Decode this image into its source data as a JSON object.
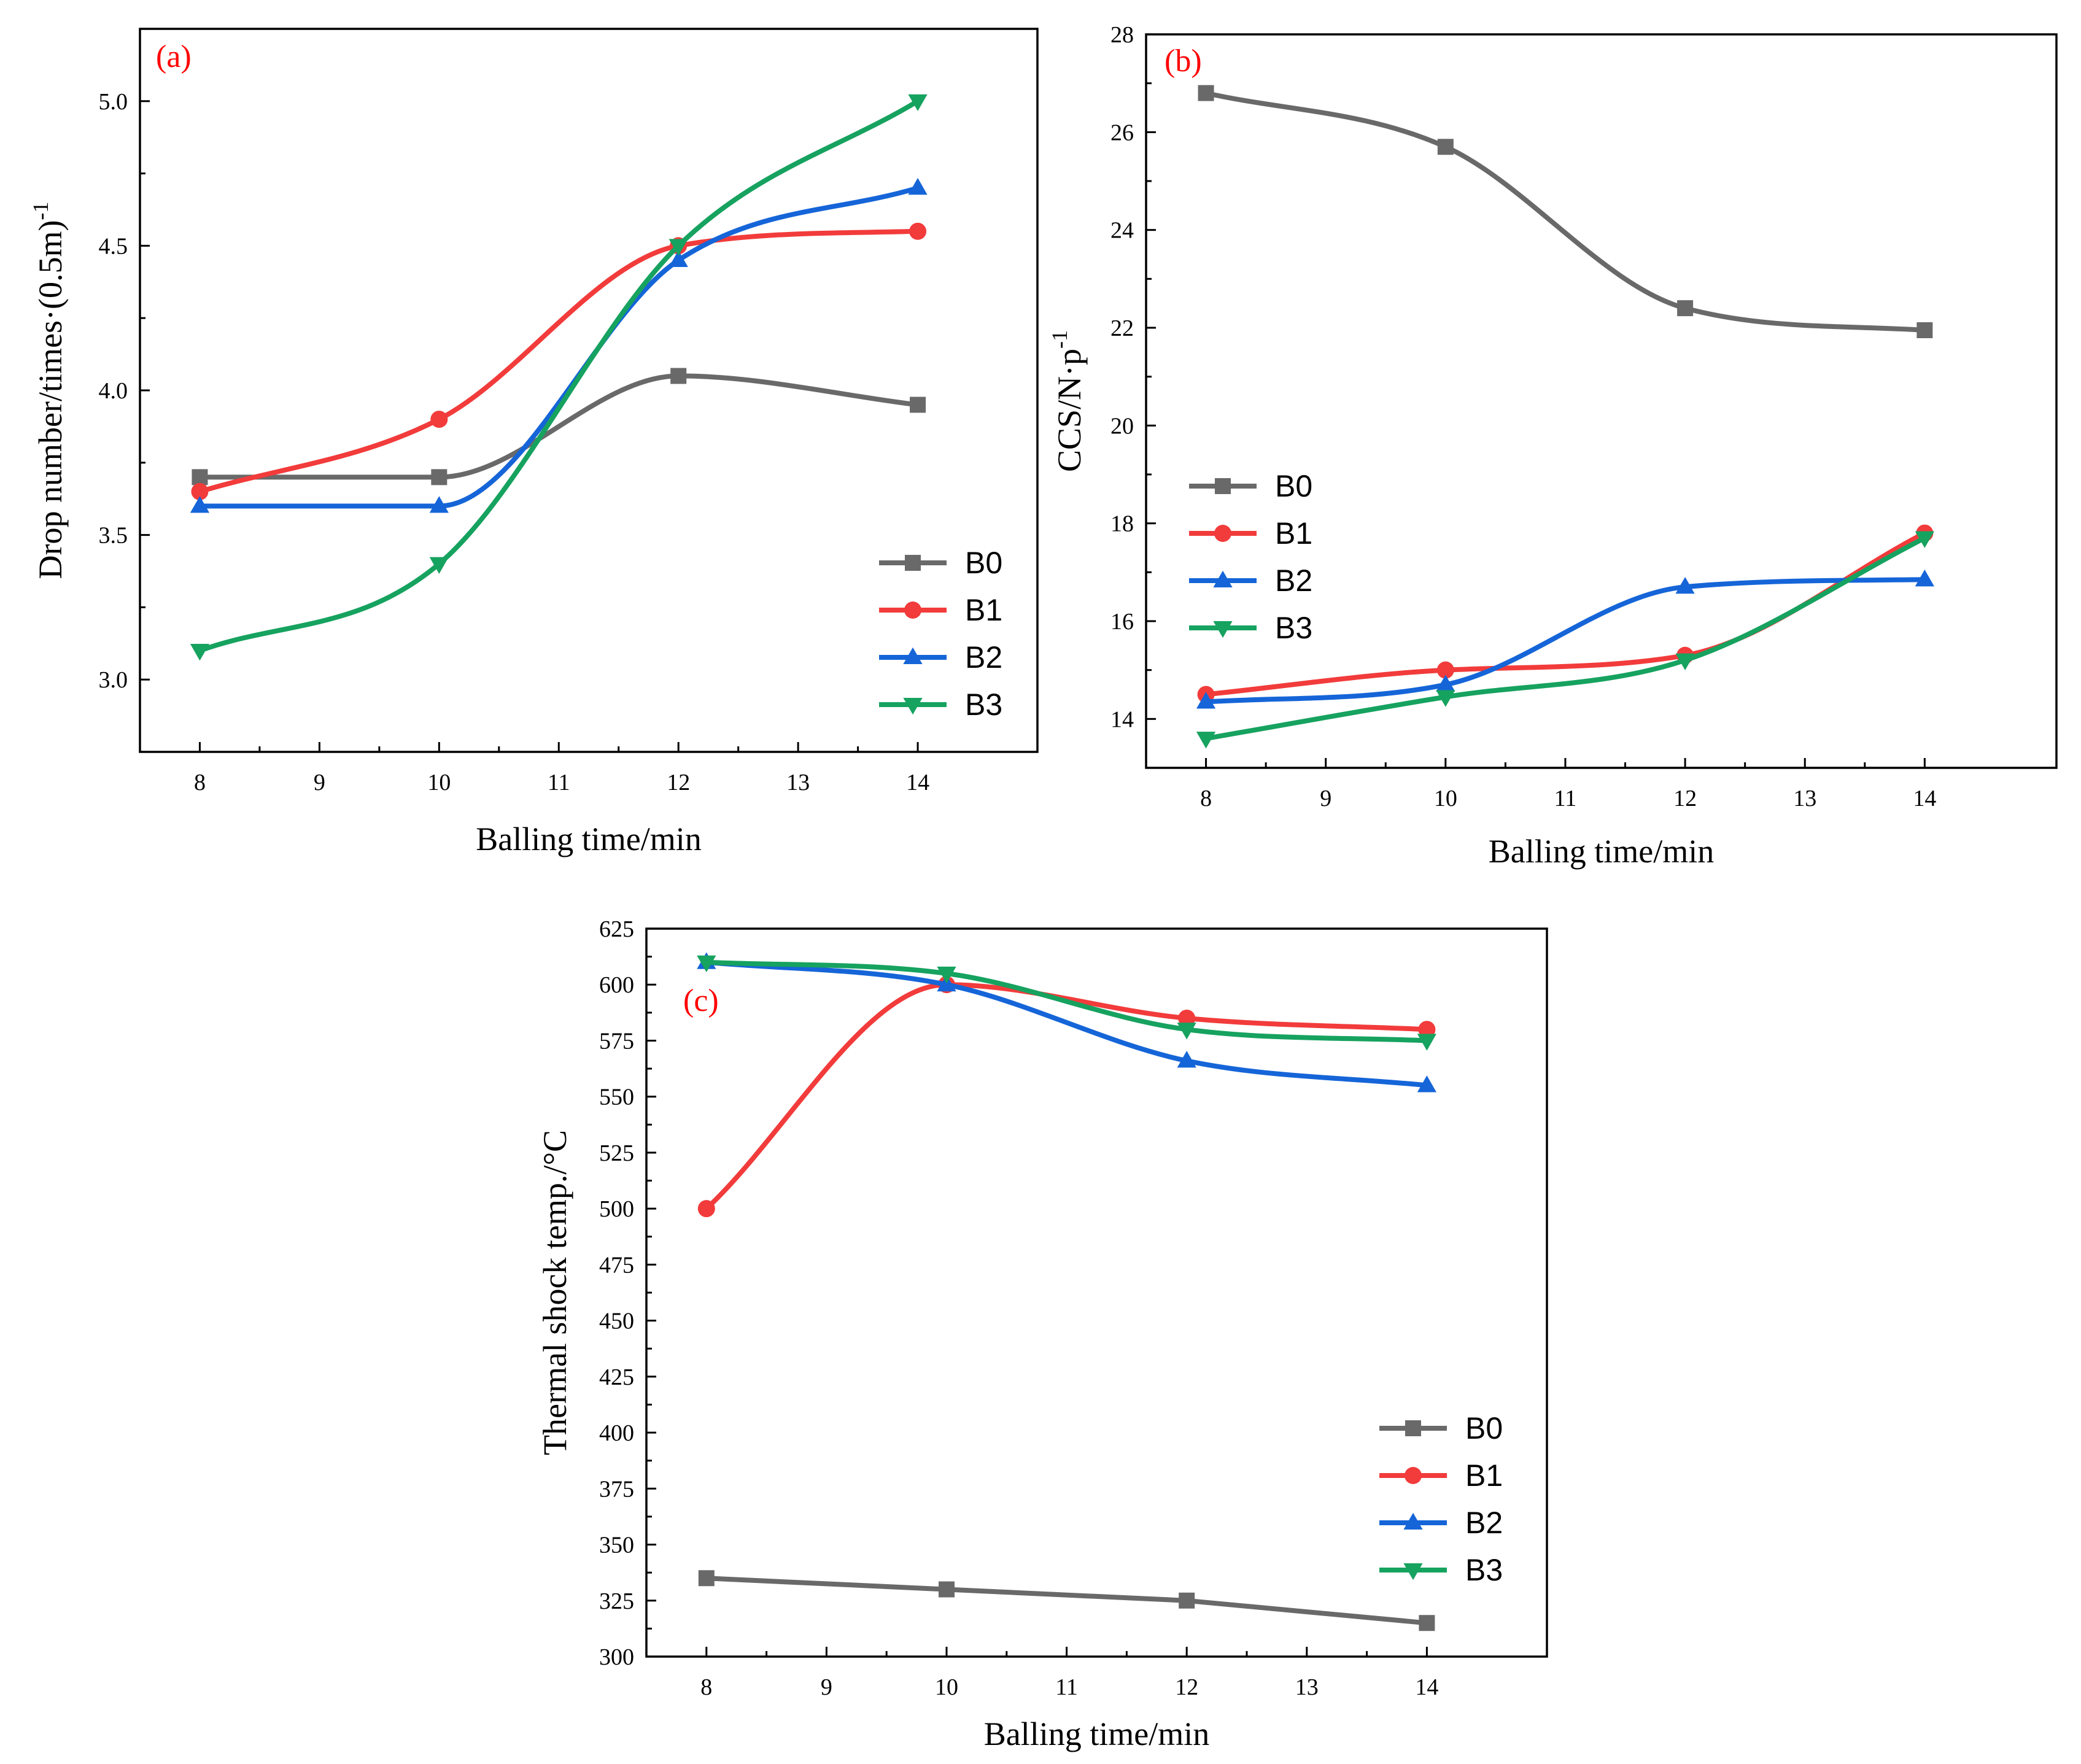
{
  "colors": {
    "B0": "#696969",
    "B1": "#f23b3b",
    "B2": "#1565d8",
    "B3": "#16a25f"
  },
  "series_markers": {
    "B0": "square",
    "B1": "circle",
    "B2": "triangle-up",
    "B3": "triangle-down"
  },
  "chart_data": [
    {
      "id": "a",
      "type": "line",
      "panel_label": "(a)",
      "title": "",
      "xlabel": "Balling time/min",
      "ylabel_main": "Drop number/times·(0.5m)",
      "ylabel_sup": "-1",
      "xlim": [
        7.5,
        15.0
      ],
      "ylim": [
        2.75,
        5.25
      ],
      "xticks": [
        8,
        9,
        10,
        11,
        12,
        13,
        14
      ],
      "xtick_labels": [
        "8",
        "9",
        "10",
        "11",
        "12",
        "13",
        "14"
      ],
      "yticks": [
        3.0,
        3.5,
        4.0,
        4.5,
        5.0
      ],
      "ytick_labels": [
        "3.0",
        "3.5",
        "4.0",
        "4.5",
        "5.0"
      ],
      "legend_position": "bottom-right",
      "x": [
        8,
        10,
        12,
        14
      ],
      "series": [
        {
          "name": "B0",
          "values": [
            3.7,
            3.7,
            4.05,
            3.95
          ]
        },
        {
          "name": "B1",
          "values": [
            3.65,
            3.9,
            4.5,
            4.55
          ]
        },
        {
          "name": "B2",
          "values": [
            3.6,
            3.6,
            4.45,
            4.7
          ]
        },
        {
          "name": "B3",
          "values": [
            3.1,
            3.4,
            4.5,
            5.0
          ]
        }
      ]
    },
    {
      "id": "b",
      "type": "line",
      "panel_label": "(b)",
      "title": "",
      "xlabel": "Balling time/min",
      "ylabel_main": "CCS/N·p",
      "ylabel_sup": "-1",
      "xlim": [
        7.5,
        15.1
      ],
      "ylim": [
        13.0,
        28.0
      ],
      "xticks": [
        8,
        9,
        10,
        11,
        12,
        13,
        14
      ],
      "xtick_labels": [
        "8",
        "9",
        "10",
        "11",
        "12",
        "13",
        "14"
      ],
      "yticks": [
        14,
        16,
        18,
        20,
        22,
        24,
        26,
        28
      ],
      "ytick_labels": [
        "14",
        "16",
        "18",
        "20",
        "22",
        "24",
        "26",
        "28"
      ],
      "legend_position": "middle-left",
      "x": [
        8,
        10,
        12,
        14
      ],
      "series": [
        {
          "name": "B0",
          "values": [
            26.8,
            25.7,
            22.4,
            21.95
          ]
        },
        {
          "name": "B1",
          "values": [
            14.5,
            15.0,
            15.3,
            17.8
          ]
        },
        {
          "name": "B2",
          "values": [
            14.35,
            14.7,
            16.7,
            16.85
          ]
        },
        {
          "name": "B3",
          "values": [
            13.6,
            14.45,
            15.2,
            17.7
          ]
        }
      ]
    },
    {
      "id": "c",
      "type": "line",
      "panel_label": "(c)",
      "title": "",
      "xlabel": "Balling time/min",
      "ylabel_main": "Thermal shock temp./°C",
      "ylabel_sup": "",
      "xlim": [
        7.5,
        15.0
      ],
      "ylim": [
        300,
        625
      ],
      "xticks": [
        8,
        9,
        10,
        11,
        12,
        13,
        14
      ],
      "xtick_labels": [
        "8",
        "9",
        "10",
        "11",
        "12",
        "13",
        "14"
      ],
      "yticks": [
        300,
        325,
        350,
        375,
        400,
        425,
        450,
        475,
        500,
        525,
        550,
        575,
        600,
        625
      ],
      "ytick_labels": [
        "300",
        "325",
        "350",
        "375",
        "400",
        "425",
        "450",
        "475",
        "500",
        "525",
        "550",
        "575",
        "600",
        "625"
      ],
      "legend_position": "bottom-right",
      "x": [
        8,
        10,
        12,
        14
      ],
      "series": [
        {
          "name": "B0",
          "values": [
            335,
            330,
            325,
            315
          ]
        },
        {
          "name": "B1",
          "values": [
            500,
            600,
            585,
            580
          ]
        },
        {
          "name": "B2",
          "values": [
            610,
            600,
            566,
            555
          ]
        },
        {
          "name": "B3",
          "values": [
            610,
            605,
            580,
            575
          ]
        }
      ]
    }
  ]
}
